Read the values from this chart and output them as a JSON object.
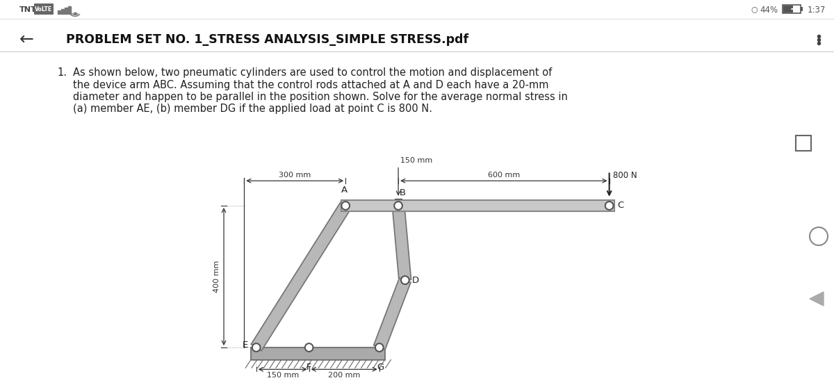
{
  "bg_color": "#ffffff",
  "status_bar_left": "TNT VoLTE",
  "status_bar_right": "044% 1:37",
  "header_title": "PROBLEM SET NO. 1_STRESS ANALYSIS_SIMPLE STRESS.pdf",
  "problem_number": "1.",
  "problem_line1": "As shown below, two pneumatic cylinders are used to control the motion and displacement of",
  "problem_line2": "the device arm ABC. Assuming that the control rods attached at A and D each have a 20-mm",
  "problem_line3": "diameter and happen to be parallel in the position shown. Solve for the average normal stress in",
  "problem_line4": "(a) member AE, (b) member DG if the applied load at point C is 800 N.",
  "dim_150mm_top": "150 mm",
  "dim_300mm": "300 mm",
  "dim_600mm": "600 mm",
  "dim_400mm": "400 mm",
  "dim_150mm_bot": "150 mm",
  "dim_200mm": "200 mm",
  "load_label": "800 N",
  "label_A": "A",
  "label_B": "B",
  "label_C": "C",
  "label_D": "D",
  "label_E": "E",
  "label_F": "F",
  "label_G": "G",
  "arm_color": "#c8c8c8",
  "arm_edge": "#888888",
  "rod_color": "#b8b8b8",
  "rod_edge": "#777777",
  "ground_color": "#aaaaaa",
  "dim_color": "#333333",
  "text_color": "#222222",
  "header_color": "#111111",
  "pin_color": "#ffffff",
  "pin_edge": "#555555"
}
